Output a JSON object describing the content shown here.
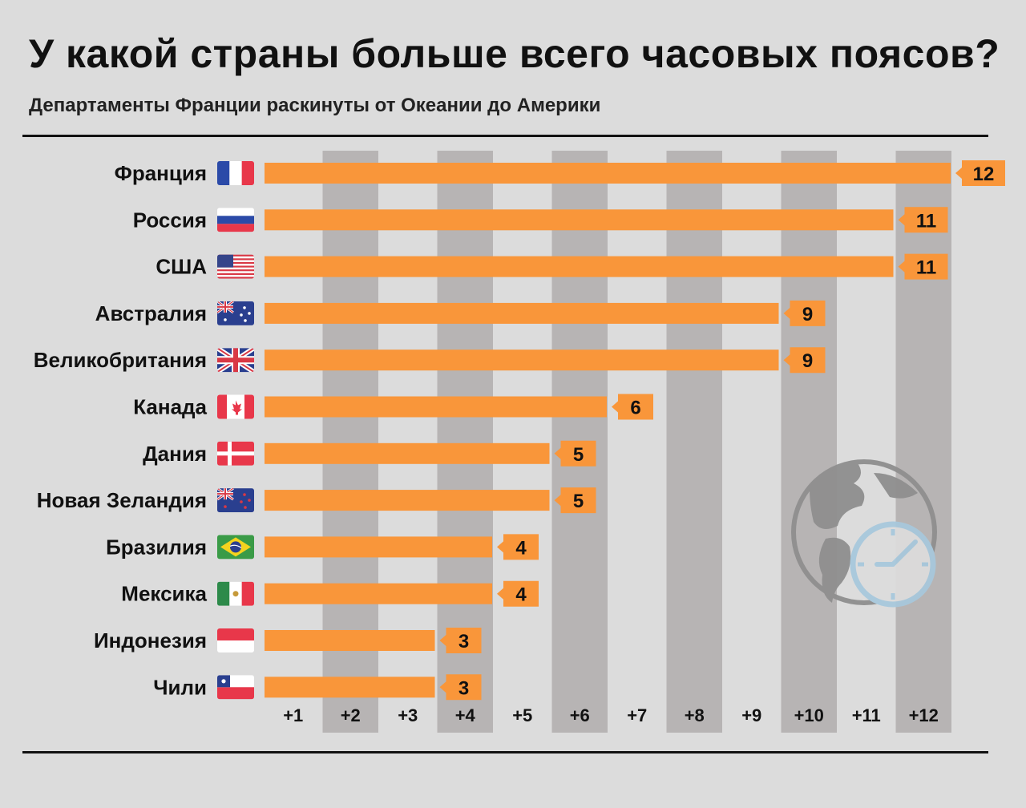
{
  "title": "У какой страны больше всего часовых поясов?",
  "subtitle": "Департаменты Франции раскинуты от Океании до Америки",
  "colors": {
    "background": "#dcdcdc",
    "bar": "#f9963a",
    "band": "#b7b4b4",
    "text": "#111111",
    "globe": "#8f8f8f",
    "clock": "#a8c8dc"
  },
  "decor_icon": "globe-with-clock-icon",
  "chart_data": {
    "type": "bar",
    "orientation": "horizontal",
    "title": "У какой страны больше всего часовых поясов?",
    "subtitle": "Департаменты Франции раскинуты от Океании до Америки",
    "categories": [
      "Франция",
      "Россия",
      "США",
      "Австралия",
      "Великобритания",
      "Канада",
      "Дания",
      "Новая Зеландия",
      "Бразилия",
      "Мексика",
      "Индонезия",
      "Чили"
    ],
    "flags": [
      "france-flag-icon",
      "russia-flag-icon",
      "usa-flag-icon",
      "australia-flag-icon",
      "uk-flag-icon",
      "canada-flag-icon",
      "denmark-flag-icon",
      "new-zealand-flag-icon",
      "brazil-flag-icon",
      "mexico-flag-icon",
      "indonesia-flag-icon",
      "chile-flag-icon"
    ],
    "values": [
      12,
      11,
      11,
      9,
      9,
      6,
      5,
      5,
      4,
      4,
      3,
      3
    ],
    "x_ticks": [
      "+1",
      "+2",
      "+3",
      "+4",
      "+5",
      "+6",
      "+7",
      "+8",
      "+9",
      "+10",
      "+11",
      "+12"
    ],
    "xlim": [
      0,
      12
    ],
    "grid": "alternating vertical bands"
  }
}
